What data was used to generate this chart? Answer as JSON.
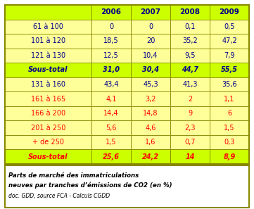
{
  "columns": [
    "",
    "2006",
    "2007",
    "2008",
    "2009"
  ],
  "rows": [
    {
      "label": "61 à 100",
      "values": [
        "0",
        "0",
        "0,1",
        "0,5"
      ],
      "label_color": "#00008B",
      "value_color": "#00008B",
      "bold": false,
      "italic": false,
      "bg": "#FFFF99"
    },
    {
      "label": "101 à 120",
      "values": [
        "18,5",
        "20",
        "35,2",
        "47,2"
      ],
      "label_color": "#00008B",
      "value_color": "#00008B",
      "bold": false,
      "italic": false,
      "bg": "#FFFF99"
    },
    {
      "label": "121 à 130",
      "values": [
        "12,5",
        "10,4",
        "9,5",
        "7,9"
      ],
      "label_color": "#00008B",
      "value_color": "#00008B",
      "bold": false,
      "italic": false,
      "bg": "#FFFF99"
    },
    {
      "label": "Sous-total",
      "values": [
        "31,0",
        "30,4",
        "44,7",
        "55,5"
      ],
      "label_color": "#00008B",
      "value_color": "#00008B",
      "bold": true,
      "italic": true,
      "bg": "#CCFF00"
    },
    {
      "label": "131 à 160",
      "values": [
        "43,4",
        "45,3",
        "41,3",
        "35,6"
      ],
      "label_color": "#00008B",
      "value_color": "#00008B",
      "bold": false,
      "italic": false,
      "bg": "#FFFF99"
    },
    {
      "label": "161 à 165",
      "values": [
        "4,1",
        "3,2",
        "2",
        "1,1"
      ],
      "label_color": "#FF0000",
      "value_color": "#FF0000",
      "bold": false,
      "italic": false,
      "bg": "#FFFF99"
    },
    {
      "label": "166 à 200",
      "values": [
        "14,4",
        "14,8",
        "9",
        "6"
      ],
      "label_color": "#FF0000",
      "value_color": "#FF0000",
      "bold": false,
      "italic": false,
      "bg": "#FFFF99"
    },
    {
      "label": "201 à 250",
      "values": [
        "5,6",
        "4,6",
        "2,3",
        "1,5"
      ],
      "label_color": "#FF0000",
      "value_color": "#FF0000",
      "bold": false,
      "italic": false,
      "bg": "#FFFF99"
    },
    {
      "label": "+ de 250",
      "values": [
        "1,5",
        "1,6",
        "0,7",
        "0,3"
      ],
      "label_color": "#FF0000",
      "value_color": "#FF0000",
      "bold": false,
      "italic": false,
      "bg": "#FFFF99"
    },
    {
      "label": "Sous-total",
      "values": [
        "25,6",
        "24,2",
        "14",
        "8,9"
      ],
      "label_color": "#FF0000",
      "value_color": "#FF0000",
      "bold": true,
      "italic": true,
      "bg": "#CCFF00"
    }
  ],
  "header_bg": "#CCFF00",
  "header_text_color": "#00008B",
  "caption_line1": "Parts de marché des immatriculations",
  "caption_line2": "neuves par tranches d’émissions de CO2 (en %)",
  "caption_line3": "doc. GDD, source FCA - Calculs CGDD",
  "border_color": "#888800",
  "cell_border_color": "#888800",
  "bg_yellow": "#FFFF99",
  "bg_green": "#CCFF00",
  "caption_bg": "#FFFFFF",
  "col_widths_rel": [
    2.2,
    1.0,
    1.0,
    1.0,
    1.0
  ],
  "fontsize_header": 7.5,
  "fontsize_data": 7.0,
  "fontsize_caption1": 6.2,
  "fontsize_caption2": 5.5
}
